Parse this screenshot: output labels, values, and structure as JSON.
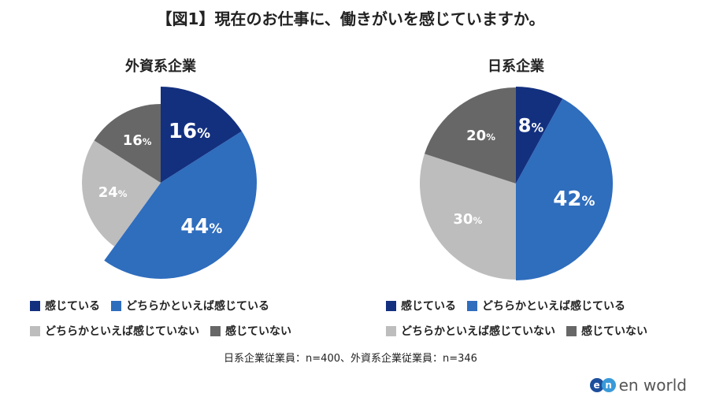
{
  "title": "【図1】現在のお仕事に、働きがいを感じていますか。",
  "chart_data": [
    {
      "type": "pie",
      "title": "外資系企業",
      "labels": [
        "感じている",
        "どちらかといえば感じている",
        "どちらかといえば感じていない",
        "感じていない"
      ],
      "values": [
        16,
        44,
        24,
        16
      ],
      "value_labels": [
        "16",
        "44",
        "24",
        "16"
      ]
    },
    {
      "type": "pie",
      "title": "日系企業",
      "labels": [
        "感じている",
        "どちらかといえば感じている",
        "どちらかといえば感じていない",
        "感じていない"
      ],
      "values": [
        8,
        42,
        30,
        20
      ],
      "value_labels": [
        "8",
        "42",
        "30",
        "20"
      ]
    }
  ],
  "colors": [
    "#13307f",
    "#2f6dbd",
    "#bdbdbd",
    "#676767"
  ],
  "legend": [
    "感じている",
    "どちらかといえば感じている",
    "どちらかといえば感じていない",
    "感じていない"
  ],
  "note": "日系企業従業員：n=400、外資系企業従業員：n=346",
  "logo": {
    "mark1": "e",
    "mark2": "n",
    "text": "en world"
  }
}
